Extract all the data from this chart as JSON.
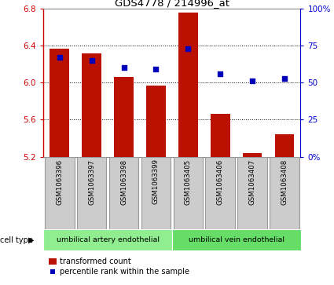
{
  "title": "GDS4778 / 214996_at",
  "samples": [
    "GSM1063396",
    "GSM1063397",
    "GSM1063398",
    "GSM1063399",
    "GSM1063405",
    "GSM1063406",
    "GSM1063407",
    "GSM1063408"
  ],
  "red_values": [
    6.37,
    6.32,
    6.06,
    5.97,
    6.76,
    5.66,
    5.24,
    5.44
  ],
  "blue_values": [
    67,
    65,
    60,
    59,
    73,
    56,
    51,
    53
  ],
  "ylim_left": [
    5.2,
    6.8
  ],
  "ylim_right": [
    0,
    100
  ],
  "yticks_left": [
    5.2,
    5.6,
    6.0,
    6.4,
    6.8
  ],
  "yticks_right": [
    0,
    25,
    50,
    75,
    100
  ],
  "ytick_labels_right": [
    "0%",
    "25",
    "50",
    "75",
    "100%"
  ],
  "cell_type_groups": [
    {
      "label": "umbilical artery endothelial",
      "start": 0,
      "end": 4,
      "color": "#90EE90"
    },
    {
      "label": "umbilical vein endothelial",
      "start": 4,
      "end": 8,
      "color": "#66DD66"
    }
  ],
  "bar_color": "#BB1100",
  "dot_color": "#0000BB",
  "grid_color": "#000000",
  "tick_color_left": "#CC0000",
  "tick_color_right": "#0000CC",
  "bar_bottom": 5.2,
  "dot_size": 18,
  "gray_box_color": "#CCCCCC",
  "gray_box_edge": "#999999",
  "legend_red_label": "transformed count",
  "legend_blue_label": "percentile rank within the sample",
  "cell_type_label": "cell type"
}
